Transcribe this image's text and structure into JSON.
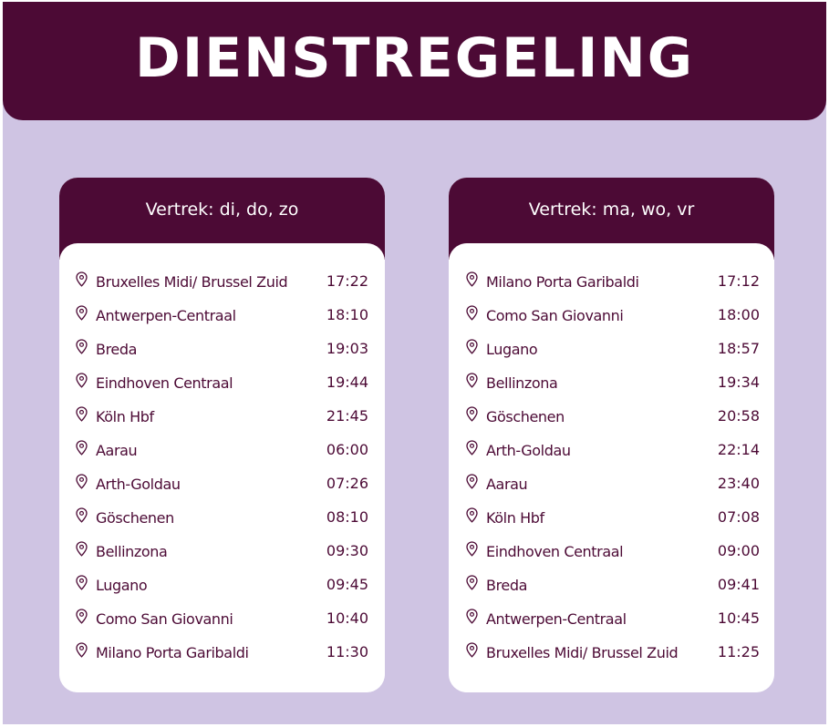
{
  "header": {
    "title": "DIENSTREGELING"
  },
  "colors": {
    "background": "#cfc4e3",
    "primary": "#4c0a35",
    "card": "#ffffff"
  },
  "icons": {
    "stop": "location-pin-icon"
  },
  "timetables": [
    {
      "title": "Vertrek: di, do, zo",
      "stops": [
        {
          "name": "Bruxelles Midi/ Brussel Zuid",
          "time": "17:22"
        },
        {
          "name": "Antwerpen-Centraal",
          "time": "18:10"
        },
        {
          "name": "Breda",
          "time": "19:03"
        },
        {
          "name": "Eindhoven Centraal",
          "time": "19:44"
        },
        {
          "name": "Köln Hbf",
          "time": "21:45"
        },
        {
          "name": "Aarau",
          "time": "06:00"
        },
        {
          "name": "Arth-Goldau",
          "time": "07:26"
        },
        {
          "name": "Göschenen",
          "time": "08:10"
        },
        {
          "name": "Bellinzona",
          "time": "09:30"
        },
        {
          "name": "Lugano",
          "time": "09:45"
        },
        {
          "name": "Como San Giovanni",
          "time": "10:40"
        },
        {
          "name": "Milano Porta Garibaldi",
          "time": "11:30"
        }
      ]
    },
    {
      "title": "Vertrek: ma, wo, vr",
      "stops": [
        {
          "name": "Milano Porta Garibaldi",
          "time": "17:12"
        },
        {
          "name": "Como San Giovanni",
          "time": "18:00"
        },
        {
          "name": "Lugano",
          "time": "18:57"
        },
        {
          "name": "Bellinzona",
          "time": "19:34"
        },
        {
          "name": "Göschenen",
          "time": "20:58"
        },
        {
          "name": "Arth-Goldau",
          "time": "22:14"
        },
        {
          "name": "Aarau",
          "time": "23:40"
        },
        {
          "name": "Köln Hbf",
          "time": "07:08"
        },
        {
          "name": "Eindhoven Centraal",
          "time": "09:00"
        },
        {
          "name": "Breda",
          "time": "09:41"
        },
        {
          "name": "Antwerpen-Centraal",
          "time": "10:45"
        },
        {
          "name": "Bruxelles Midi/ Brussel Zuid",
          "time": "11:25"
        }
      ]
    }
  ]
}
